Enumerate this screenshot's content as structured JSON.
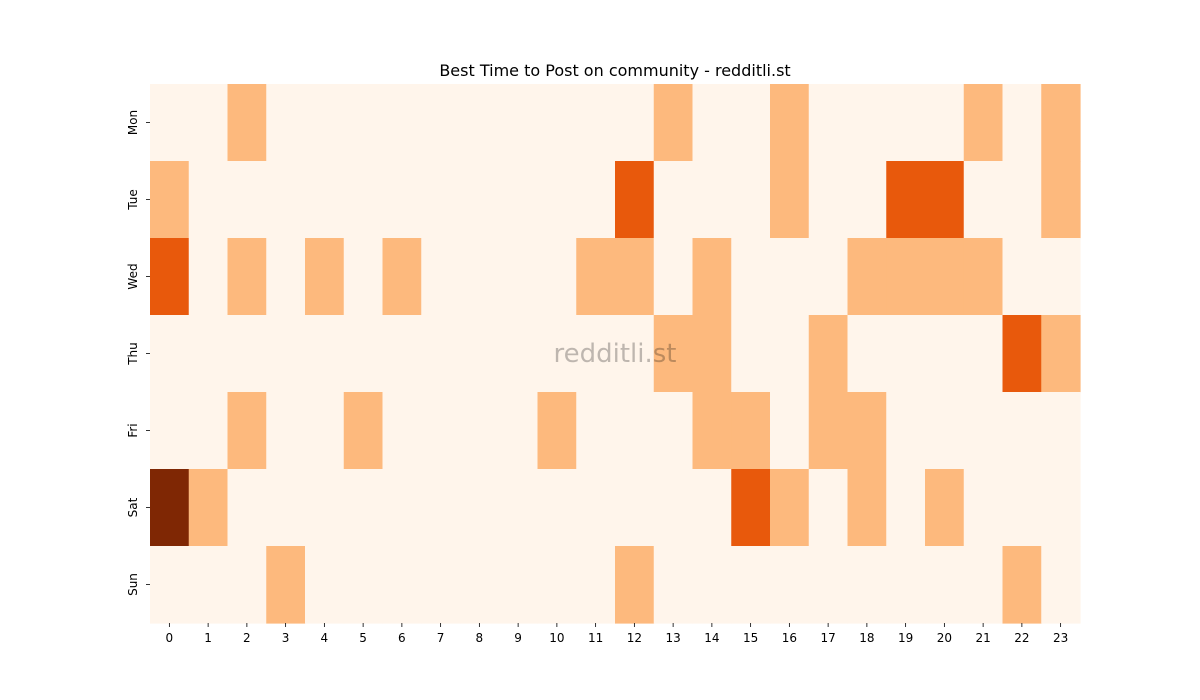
{
  "chart_data": {
    "type": "heatmap",
    "title": "Best Time to Post on community - redditli.st",
    "watermark": "redditli.st",
    "x_categories": [
      "0",
      "1",
      "2",
      "3",
      "4",
      "5",
      "6",
      "7",
      "8",
      "9",
      "10",
      "11",
      "12",
      "13",
      "14",
      "15",
      "16",
      "17",
      "18",
      "19",
      "20",
      "21",
      "22",
      "23"
    ],
    "y_categories": [
      "Mon",
      "Tue",
      "Wed",
      "Thu",
      "Fri",
      "Sat",
      "Sun"
    ],
    "values": [
      [
        0,
        0,
        1,
        0,
        0,
        0,
        0,
        0,
        0,
        0,
        0,
        0,
        0,
        1,
        0,
        0,
        1,
        0,
        0,
        0,
        0,
        1,
        0,
        1
      ],
      [
        1,
        0,
        0,
        0,
        0,
        0,
        0,
        0,
        0,
        0,
        0,
        0,
        2,
        0,
        0,
        0,
        1,
        0,
        0,
        2,
        2,
        0,
        0,
        1
      ],
      [
        2,
        0,
        1,
        0,
        1,
        0,
        1,
        0,
        0,
        0,
        0,
        1,
        1,
        0,
        1,
        0,
        0,
        0,
        1,
        1,
        1,
        1,
        0,
        0
      ],
      [
        0,
        0,
        0,
        0,
        0,
        0,
        0,
        0,
        0,
        0,
        0,
        0,
        0,
        1,
        1,
        0,
        0,
        1,
        0,
        0,
        0,
        0,
        2,
        1
      ],
      [
        0,
        0,
        1,
        0,
        0,
        1,
        0,
        0,
        0,
        0,
        1,
        0,
        0,
        0,
        1,
        1,
        0,
        1,
        1,
        0,
        0,
        0,
        0,
        0
      ],
      [
        3,
        1,
        0,
        0,
        0,
        0,
        0,
        0,
        0,
        0,
        0,
        0,
        0,
        0,
        0,
        2,
        1,
        0,
        1,
        0,
        1,
        0,
        0,
        0
      ],
      [
        0,
        0,
        0,
        1,
        0,
        0,
        0,
        0,
        0,
        0,
        0,
        0,
        1,
        0,
        0,
        0,
        0,
        0,
        0,
        0,
        0,
        0,
        1,
        0
      ]
    ],
    "colormap": [
      "#fff5eb",
      "#fdb97d",
      "#e8590c",
      "#7f2704"
    ],
    "legend": "none",
    "grid": false
  }
}
